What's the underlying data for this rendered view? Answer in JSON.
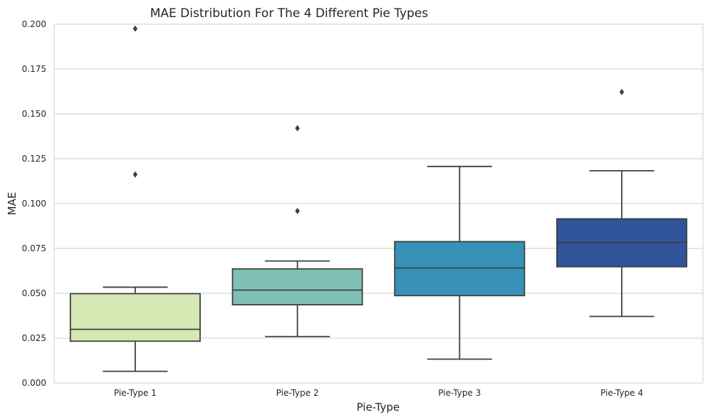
{
  "chart_data": {
    "type": "box",
    "title": "MAE Distribution For The 4 Different Pie Types",
    "xlabel": "Pie-Type",
    "ylabel": "MAE",
    "ylim": [
      0,
      0.2
    ],
    "yticks": [
      "0.000",
      "0.025",
      "0.050",
      "0.075",
      "0.100",
      "0.125",
      "0.150",
      "0.175",
      "0.200"
    ],
    "grid": true,
    "categories": [
      "Pie-Type 1",
      "Pie-Type 2",
      "Pie-Type 3",
      "Pie-Type 4"
    ],
    "boxes": [
      {
        "category": "Pie-Type 1",
        "whisker_low": 0.0065,
        "q1": 0.0233,
        "median": 0.0299,
        "q3": 0.0498,
        "whisker_high": 0.0534,
        "outliers": [
          0.1162,
          0.1975
        ],
        "color": "#d6e8b4"
      },
      {
        "category": "Pie-Type 2",
        "whisker_low": 0.0259,
        "q1": 0.0436,
        "median": 0.0518,
        "q3": 0.0636,
        "whisker_high": 0.068,
        "outliers": [
          0.0959,
          0.142
        ],
        "color": "#7fc0b5"
      },
      {
        "category": "Pie-Type 3",
        "whisker_low": 0.0133,
        "q1": 0.0487,
        "median": 0.0641,
        "q3": 0.0788,
        "whisker_high": 0.1207,
        "outliers": [],
        "color": "#3891b6"
      },
      {
        "category": "Pie-Type 4",
        "whisker_low": 0.0371,
        "q1": 0.0648,
        "median": 0.0783,
        "q3": 0.0915,
        "whisker_high": 0.1183,
        "outliers": [
          0.1622
        ],
        "color": "#30549a"
      }
    ],
    "line_color": "#3f3f3f"
  }
}
